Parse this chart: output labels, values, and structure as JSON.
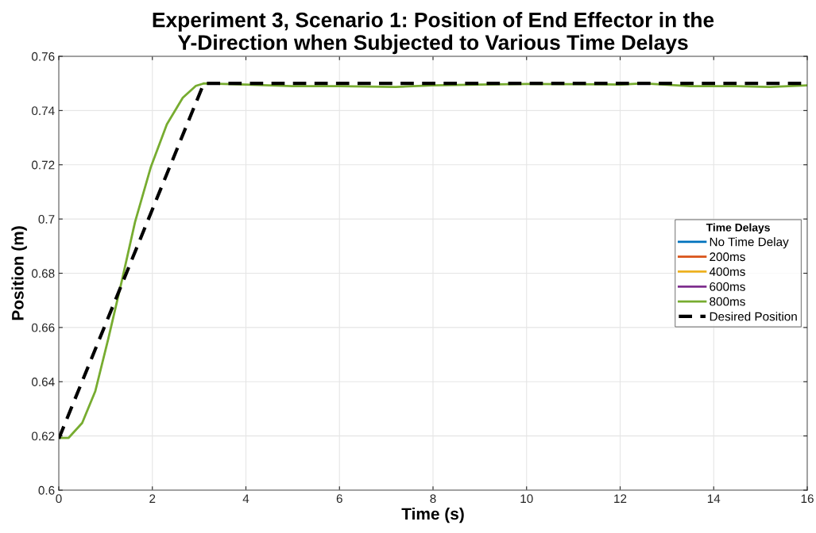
{
  "chart_data": {
    "type": "line",
    "title": "Experiment 3, Scenario 1: Position of End Effector in the\nY-Direction when Subjected to Various Time Delays",
    "xlabel": "Time (s)",
    "ylabel": "Position (m)",
    "legend_title": "Time Delays",
    "x": [
      0,
      0.21,
      0.5,
      0.78,
      1.06,
      1.35,
      1.63,
      1.97,
      2.31,
      2.65,
      2.93,
      3.1,
      4,
      5,
      6,
      7.2,
      8,
      9,
      10,
      11,
      12,
      12.5,
      13.5,
      14.5,
      15.2,
      16
    ],
    "series": [
      {
        "name": "No Time Delay",
        "color": "#0072bd",
        "values": [
          null,
          null,
          null,
          null,
          null,
          null,
          null,
          null,
          null,
          null,
          null,
          null,
          null,
          null,
          null,
          null,
          null,
          null,
          null,
          null,
          null,
          null,
          null,
          null,
          null,
          null
        ]
      },
      {
        "name": "200ms",
        "color": "#d95319",
        "values": [
          null,
          null,
          null,
          null,
          null,
          null,
          null,
          null,
          null,
          null,
          null,
          null,
          null,
          null,
          null,
          null,
          null,
          null,
          null,
          null,
          null,
          null,
          null,
          null,
          null,
          null
        ]
      },
      {
        "name": "400ms",
        "color": "#edb120",
        "values": [
          null,
          null,
          null,
          null,
          null,
          null,
          null,
          null,
          null,
          null,
          null,
          null,
          null,
          null,
          null,
          null,
          null,
          null,
          null,
          null,
          null,
          null,
          null,
          null,
          null,
          null
        ]
      },
      {
        "name": "600ms",
        "color": "#7e2f8e",
        "values": [
          null,
          null,
          null,
          null,
          null,
          null,
          null,
          null,
          null,
          null,
          null,
          null,
          null,
          null,
          null,
          null,
          null,
          null,
          null,
          null,
          null,
          null,
          null,
          null,
          null,
          null
        ]
      },
      {
        "name": "800ms",
        "color": "#77ac30",
        "values": [
          0.6193,
          0.6193,
          0.6248,
          0.6365,
          0.656,
          0.6774,
          0.6989,
          0.7193,
          0.7349,
          0.7447,
          0.7491,
          0.75,
          0.7496,
          0.749,
          0.749,
          0.7487,
          0.7493,
          0.7496,
          0.7498,
          0.7497,
          0.7496,
          0.75,
          0.749,
          0.749,
          0.7487,
          0.7493
        ]
      },
      {
        "name": "Desired Position",
        "color": "#000000",
        "line_style": "dashed",
        "x": [
          0,
          3.1,
          16
        ],
        "values": [
          0.619,
          0.75,
          0.75
        ]
      }
    ],
    "xlim": [
      0,
      16
    ],
    "ylim": [
      0.6,
      0.76
    ],
    "xticks": [
      0,
      2,
      4,
      6,
      8,
      10,
      12,
      14,
      16
    ],
    "yticks": [
      0.6,
      0.62,
      0.64,
      0.66,
      0.68,
      0.7,
      0.72,
      0.74,
      0.76
    ],
    "grid": true,
    "legend": "right"
  }
}
